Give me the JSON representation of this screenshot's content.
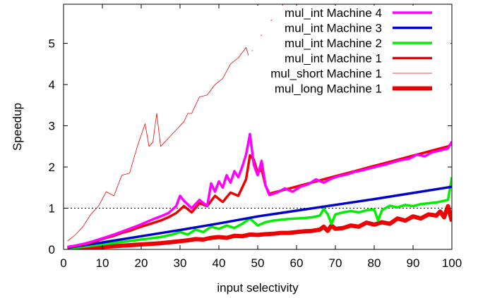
{
  "chart_data": {
    "type": "line",
    "title": "",
    "xlabel": "input selectivity",
    "ylabel": "Speedup",
    "xlim": [
      0,
      100
    ],
    "ylim": [
      0,
      5.95
    ],
    "x_ticks": [
      0,
      10,
      20,
      30,
      40,
      50,
      60,
      70,
      80,
      90,
      100
    ],
    "y_ticks": [
      0,
      1,
      2,
      3,
      4,
      5
    ],
    "x_tick_labels": [
      "0",
      "10",
      "20",
      "30",
      "40",
      "50",
      "60",
      "70",
      "80",
      "90",
      "100"
    ],
    "y_tick_labels": [
      "0",
      "1",
      "2",
      "3",
      "4",
      "5"
    ],
    "grid": false,
    "legend_position": "top-right",
    "reference_line": {
      "y": 1,
      "style": "dotted",
      "color": "#000000"
    },
    "series": [
      {
        "name": "mul_int Machine 4",
        "color": "#ff00ff",
        "width": 3.5,
        "x": [
          1,
          3,
          5,
          7,
          9,
          11,
          13,
          15,
          17,
          19,
          21,
          23,
          25,
          27,
          29,
          30,
          31,
          33,
          35,
          37,
          38,
          39,
          40,
          41,
          42,
          43,
          44,
          45,
          46,
          47,
          48,
          49,
          50,
          51,
          52,
          53,
          55,
          57,
          59,
          61,
          63,
          65,
          67,
          69,
          71,
          73,
          75,
          77,
          79,
          81,
          83,
          85,
          87,
          89,
          91,
          93,
          95,
          97,
          99,
          100
        ],
        "y": [
          0.06,
          0.09,
          0.13,
          0.18,
          0.24,
          0.3,
          0.36,
          0.43,
          0.5,
          0.57,
          0.65,
          0.73,
          0.8,
          0.88,
          1.05,
          1.3,
          1.18,
          1.0,
          1.2,
          1.05,
          1.6,
          1.4,
          1.65,
          1.5,
          1.8,
          1.62,
          1.9,
          1.75,
          2.0,
          2.3,
          2.8,
          2.05,
          1.8,
          2.15,
          1.55,
          1.32,
          1.38,
          1.48,
          1.4,
          1.52,
          1.58,
          1.7,
          1.62,
          1.72,
          1.78,
          1.82,
          1.88,
          1.92,
          1.97,
          2.02,
          2.06,
          2.12,
          2.17,
          2.2,
          2.3,
          2.26,
          2.36,
          2.4,
          2.45,
          2.62
        ]
      },
      {
        "name": "mul_int Machine 3",
        "color": "#0000cc",
        "width": 3.5,
        "x": [
          1,
          10,
          20,
          30,
          40,
          50,
          60,
          70,
          80,
          90,
          100
        ],
        "y": [
          0.04,
          0.17,
          0.32,
          0.47,
          0.63,
          0.8,
          0.94,
          1.08,
          1.22,
          1.37,
          1.52
        ]
      },
      {
        "name": "mul_int Machine 2",
        "color": "#00ee00",
        "width": 3.5,
        "x": [
          1,
          5,
          10,
          15,
          20,
          25,
          28,
          30,
          32,
          34,
          36,
          38,
          40,
          42,
          44,
          46,
          48,
          50,
          52,
          54,
          56,
          58,
          60,
          62,
          64,
          66,
          67,
          68,
          69,
          70,
          72,
          74,
          76,
          78,
          80,
          81,
          82,
          84,
          86,
          88,
          90,
          92,
          94,
          96,
          98,
          99,
          100
        ],
        "y": [
          0.02,
          0.06,
          0.12,
          0.18,
          0.24,
          0.3,
          0.36,
          0.42,
          0.36,
          0.48,
          0.42,
          0.55,
          0.5,
          0.58,
          0.52,
          0.62,
          0.75,
          0.58,
          0.66,
          0.7,
          0.72,
          0.74,
          0.75,
          0.76,
          0.78,
          0.82,
          0.98,
          0.86,
          0.62,
          0.85,
          0.9,
          0.93,
          0.9,
          0.95,
          0.97,
          0.7,
          0.95,
          1.06,
          1.02,
          1.08,
          1.05,
          1.1,
          1.12,
          1.14,
          1.18,
          1.2,
          1.75
        ]
      },
      {
        "name": "mul_int Machine 1",
        "color": "#ee0000",
        "width": 3.5,
        "x": [
          1,
          3,
          5,
          7,
          9,
          11,
          13,
          15,
          17,
          19,
          21,
          23,
          25,
          27,
          29,
          31,
          33,
          35,
          37,
          39,
          41,
          43,
          45,
          46,
          47,
          48,
          49,
          50,
          51,
          52,
          53,
          55,
          57,
          59,
          61,
          63,
          65,
          67,
          69,
          71,
          73,
          75,
          77,
          79,
          81,
          83,
          85,
          87,
          89,
          91,
          93,
          95,
          97,
          99,
          100
        ],
        "y": [
          0.05,
          0.08,
          0.12,
          0.16,
          0.22,
          0.28,
          0.33,
          0.4,
          0.45,
          0.52,
          0.58,
          0.64,
          0.7,
          0.78,
          0.88,
          1.05,
          0.9,
          1.12,
          1.05,
          1.3,
          1.15,
          1.38,
          1.3,
          1.5,
          1.7,
          2.28,
          2.18,
          1.85,
          1.95,
          1.55,
          1.35,
          1.4,
          1.45,
          1.5,
          1.55,
          1.6,
          1.65,
          1.7,
          1.75,
          1.8,
          1.85,
          1.9,
          1.95,
          2.0,
          2.05,
          2.1,
          2.15,
          2.2,
          2.25,
          2.3,
          2.35,
          2.4,
          2.45,
          2.5,
          2.56
        ]
      },
      {
        "name": "mul_short Machine 1",
        "color": "#ee0000",
        "width": 0.8,
        "x": [
          1,
          3,
          5,
          7,
          9,
          11,
          13,
          15,
          17,
          19,
          21,
          22,
          23,
          24,
          25,
          27,
          29,
          31,
          32,
          33,
          35,
          37,
          39,
          41,
          43,
          45,
          47,
          48,
          49,
          51,
          53,
          55,
          57
        ],
        "y": [
          0.2,
          0.35,
          0.55,
          0.85,
          1.05,
          1.4,
          1.3,
          1.8,
          1.85,
          2.5,
          3.05,
          2.5,
          2.6,
          3.3,
          2.5,
          2.7,
          2.9,
          3.1,
          3.3,
          3.3,
          3.7,
          3.75,
          4.0,
          4.15,
          4.5,
          4.65,
          4.9,
          4.6,
          5.0,
          5.2,
          5.5,
          5.75,
          6.0
        ]
      },
      {
        "name": "mul_long Machine 1",
        "color": "#ee0000",
        "width": 6,
        "x": [
          1,
          5,
          10,
          15,
          20,
          25,
          28,
          30,
          32,
          34,
          36,
          38,
          40,
          42,
          44,
          46,
          48,
          50,
          52,
          54,
          56,
          58,
          60,
          62,
          64,
          66,
          67,
          68,
          69,
          70,
          72,
          74,
          76,
          78,
          80,
          82,
          84,
          86,
          88,
          90,
          92,
          94,
          96,
          97,
          98,
          99,
          100
        ],
        "y": [
          0.01,
          0.03,
          0.06,
          0.09,
          0.12,
          0.15,
          0.18,
          0.2,
          0.22,
          0.25,
          0.24,
          0.28,
          0.3,
          0.28,
          0.33,
          0.32,
          0.36,
          0.35,
          0.37,
          0.38,
          0.4,
          0.4,
          0.42,
          0.44,
          0.45,
          0.48,
          0.55,
          0.45,
          0.58,
          0.5,
          0.52,
          0.58,
          0.55,
          0.65,
          0.6,
          0.66,
          0.62,
          0.75,
          0.7,
          0.8,
          0.75,
          0.85,
          0.82,
          0.92,
          0.78,
          1.05,
          0.68
        ]
      }
    ]
  }
}
